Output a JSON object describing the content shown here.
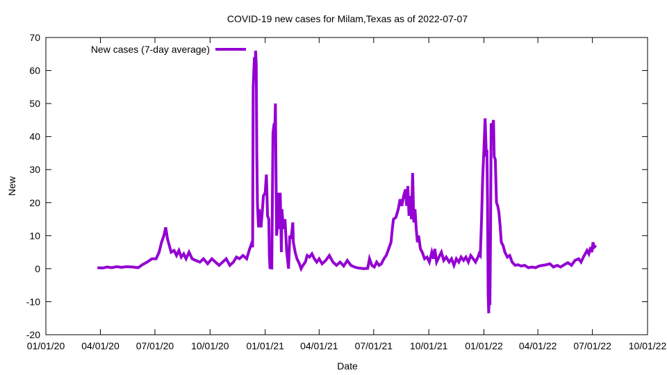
{
  "chart_data": {
    "type": "line",
    "title": "COVID-19 new cases for Milam,Texas as of 2022-07-07",
    "xlabel": "Date",
    "ylabel": "New",
    "ylim": [
      -20,
      70
    ],
    "yticks": [
      "-20",
      "-10",
      "0",
      "10",
      "20",
      "30",
      "40",
      "50",
      "60",
      "70"
    ],
    "xticks": [
      "01/01/20",
      "04/01/20",
      "07/01/20",
      "10/01/20",
      "01/01/21",
      "04/01/21",
      "07/01/21",
      "10/01/21",
      "01/01/22",
      "04/01/22",
      "07/01/22",
      "10/01/22"
    ],
    "xlim": [
      "2020-01-01",
      "2022-10-01"
    ],
    "legend_position": "top-left",
    "grid": false,
    "series": [
      {
        "name": "New cases (7-day average)",
        "color": "#9400d3",
        "points": [
          [
            "2020-03-27",
            0.3
          ],
          [
            "2020-04-05",
            0.2
          ],
          [
            "2020-04-12",
            0.5
          ],
          [
            "2020-04-20",
            0.3
          ],
          [
            "2020-04-28",
            0.6
          ],
          [
            "2020-05-06",
            0.4
          ],
          [
            "2020-05-15",
            0.6
          ],
          [
            "2020-05-25",
            0.5
          ],
          [
            "2020-06-03",
            0.3
          ],
          [
            "2020-06-10",
            1.2
          ],
          [
            "2020-06-18",
            2.0
          ],
          [
            "2020-06-26",
            3.0
          ],
          [
            "2020-07-03",
            3.0
          ],
          [
            "2020-07-08",
            5.0
          ],
          [
            "2020-07-12",
            8.0
          ],
          [
            "2020-07-16",
            10.0
          ],
          [
            "2020-07-19",
            12.5
          ],
          [
            "2020-07-22",
            9.0
          ],
          [
            "2020-07-25",
            7.0
          ],
          [
            "2020-07-28",
            5.0
          ],
          [
            "2020-08-02",
            5.5
          ],
          [
            "2020-08-06",
            4.0
          ],
          [
            "2020-08-10",
            5.5
          ],
          [
            "2020-08-14",
            3.5
          ],
          [
            "2020-08-18",
            4.5
          ],
          [
            "2020-08-22",
            3.0
          ],
          [
            "2020-08-27",
            5.0
          ],
          [
            "2020-09-01",
            3.0
          ],
          [
            "2020-09-07",
            2.5
          ],
          [
            "2020-09-14",
            2.0
          ],
          [
            "2020-09-20",
            3.0
          ],
          [
            "2020-09-27",
            1.5
          ],
          [
            "2020-10-04",
            3.0
          ],
          [
            "2020-10-10",
            2.0
          ],
          [
            "2020-10-16",
            1.0
          ],
          [
            "2020-10-22",
            2.0
          ],
          [
            "2020-10-28",
            3.0
          ],
          [
            "2020-11-03",
            1.0
          ],
          [
            "2020-11-09",
            2.0
          ],
          [
            "2020-11-14",
            3.5
          ],
          [
            "2020-11-19",
            3.0
          ],
          [
            "2020-11-25",
            4.0
          ],
          [
            "2020-12-01",
            3.0
          ],
          [
            "2020-12-06",
            6.0
          ],
          [
            "2020-12-09",
            7.5
          ],
          [
            "2020-12-11",
            6.5
          ],
          [
            "2020-12-12",
            55.0
          ],
          [
            "2020-12-14",
            64.0
          ],
          [
            "2020-12-15",
            60.0
          ],
          [
            "2020-12-16",
            66.0
          ],
          [
            "2020-12-17",
            62.0
          ],
          [
            "2020-12-18",
            35.0
          ],
          [
            "2020-12-19",
            20.0
          ],
          [
            "2020-12-20",
            16.0
          ],
          [
            "2020-12-21",
            12.5
          ],
          [
            "2020-12-22",
            18.0
          ],
          [
            "2020-12-24",
            14.0
          ],
          [
            "2020-12-25",
            12.5
          ],
          [
            "2020-12-27",
            17.0
          ],
          [
            "2020-12-29",
            22.0
          ],
          [
            "2021-01-01",
            23.0
          ],
          [
            "2021-01-03",
            28.5
          ],
          [
            "2021-01-05",
            16.0
          ],
          [
            "2021-01-07",
            15.0
          ],
          [
            "2021-01-08",
            4.0
          ],
          [
            "2021-01-09",
            0.3
          ],
          [
            "2021-01-12",
            0.2
          ],
          [
            "2021-01-14",
            41.0
          ],
          [
            "2021-01-16",
            44.0
          ],
          [
            "2021-01-17",
            42.0
          ],
          [
            "2021-01-18",
            50.0
          ],
          [
            "2021-01-19",
            30.0
          ],
          [
            "2021-01-20",
            10.0
          ],
          [
            "2021-01-21",
            12.0
          ],
          [
            "2021-01-22",
            21.0
          ],
          [
            "2021-01-23",
            15.0
          ],
          [
            "2021-01-24",
            23.0
          ],
          [
            "2021-01-25",
            12.0
          ],
          [
            "2021-01-26",
            23.0
          ],
          [
            "2021-01-27",
            15.0
          ],
          [
            "2021-01-28",
            5.0
          ],
          [
            "2021-01-29",
            18.0
          ],
          [
            "2021-01-31",
            12.0
          ],
          [
            "2021-02-03",
            15.0
          ],
          [
            "2021-02-06",
            5.0
          ],
          [
            "2021-02-09",
            0.0
          ],
          [
            "2021-02-11",
            10.0
          ],
          [
            "2021-02-13",
            9.0
          ],
          [
            "2021-02-15",
            12.0
          ],
          [
            "2021-02-16",
            14.0
          ],
          [
            "2021-02-17",
            8.0
          ],
          [
            "2021-02-20",
            5.0
          ],
          [
            "2021-02-23",
            3.0
          ],
          [
            "2021-02-27",
            1.5
          ],
          [
            "2021-03-02",
            0.0
          ],
          [
            "2021-03-05",
            1.0
          ],
          [
            "2021-03-09",
            2.0
          ],
          [
            "2021-03-12",
            4.0
          ],
          [
            "2021-03-16",
            3.5
          ],
          [
            "2021-03-20",
            4.5
          ],
          [
            "2021-03-24",
            3.0
          ],
          [
            "2021-03-28",
            2.0
          ],
          [
            "2021-04-01",
            3.0
          ],
          [
            "2021-04-06",
            1.5
          ],
          [
            "2021-04-12",
            2.5
          ],
          [
            "2021-04-18",
            4.0
          ],
          [
            "2021-04-24",
            2.0
          ],
          [
            "2021-04-30",
            1.0
          ],
          [
            "2021-05-06",
            2.0
          ],
          [
            "2021-05-12",
            0.8
          ],
          [
            "2021-05-18",
            2.5
          ],
          [
            "2021-05-24",
            1.0
          ],
          [
            "2021-05-30",
            0.5
          ],
          [
            "2021-06-05",
            0.2
          ],
          [
            "2021-06-15",
            0.0
          ],
          [
            "2021-06-21",
            0.1
          ],
          [
            "2021-06-24",
            3.0
          ],
          [
            "2021-06-28",
            1.0
          ],
          [
            "2021-07-02",
            0.5
          ],
          [
            "2021-07-06",
            2.0
          ],
          [
            "2021-07-10",
            1.0
          ],
          [
            "2021-07-14",
            1.5
          ],
          [
            "2021-07-18",
            3.0
          ],
          [
            "2021-07-22",
            4.0
          ],
          [
            "2021-07-26",
            6.0
          ],
          [
            "2021-07-30",
            8.0
          ],
          [
            "2021-08-01",
            12.0
          ],
          [
            "2021-08-03",
            15.0
          ],
          [
            "2021-08-07",
            15.5
          ],
          [
            "2021-08-11",
            18.0
          ],
          [
            "2021-08-14",
            21.0
          ],
          [
            "2021-08-17",
            19.0
          ],
          [
            "2021-08-20",
            22.0
          ],
          [
            "2021-08-23",
            24.0
          ],
          [
            "2021-08-25",
            19.0
          ],
          [
            "2021-08-27",
            25.0
          ],
          [
            "2021-08-29",
            16.0
          ],
          [
            "2021-08-31",
            22.0
          ],
          [
            "2021-09-02",
            15.0
          ],
          [
            "2021-09-04",
            29.0
          ],
          [
            "2021-09-06",
            14.0
          ],
          [
            "2021-09-08",
            18.0
          ],
          [
            "2021-09-10",
            12.0
          ],
          [
            "2021-09-12",
            8.0
          ],
          [
            "2021-09-14",
            10.0
          ],
          [
            "2021-09-17",
            6.0
          ],
          [
            "2021-09-20",
            5.0
          ],
          [
            "2021-09-24",
            3.0
          ],
          [
            "2021-09-28",
            3.5
          ],
          [
            "2021-10-02",
            2.0
          ],
          [
            "2021-10-06",
            5.0
          ],
          [
            "2021-10-09",
            3.0
          ],
          [
            "2021-10-11",
            6.0
          ],
          [
            "2021-10-14",
            2.0
          ],
          [
            "2021-10-18",
            3.5
          ],
          [
            "2021-10-22",
            5.0
          ],
          [
            "2021-10-26",
            2.5
          ],
          [
            "2021-10-30",
            3.5
          ],
          [
            "2021-11-04",
            2.0
          ],
          [
            "2021-11-08",
            3.0
          ],
          [
            "2021-11-12",
            1.0
          ],
          [
            "2021-11-16",
            3.0
          ],
          [
            "2021-11-20",
            2.0
          ],
          [
            "2021-11-24",
            3.5
          ],
          [
            "2021-11-28",
            2.5
          ],
          [
            "2021-12-02",
            3.5
          ],
          [
            "2021-12-06",
            2.0
          ],
          [
            "2021-12-10",
            4.0
          ],
          [
            "2021-12-14",
            3.0
          ],
          [
            "2021-12-18",
            2.0
          ],
          [
            "2021-12-22",
            3.5
          ],
          [
            "2021-12-24",
            4.5
          ],
          [
            "2021-12-26",
            4.0
          ],
          [
            "2021-12-28",
            15.0
          ],
          [
            "2021-12-30",
            28.0
          ],
          [
            "2022-01-01",
            36.0
          ],
          [
            "2022-01-03",
            45.5
          ],
          [
            "2022-01-05",
            34.0
          ],
          [
            "2022-01-06",
            36.0
          ],
          [
            "2022-01-07",
            20.0
          ],
          [
            "2022-01-08",
            -8.0
          ],
          [
            "2022-01-09",
            -13.5
          ],
          [
            "2022-01-10",
            -6.0
          ],
          [
            "2022-01-11",
            -11.0
          ],
          [
            "2022-01-12",
            10.0
          ],
          [
            "2022-01-13",
            44.0
          ],
          [
            "2022-01-15",
            43.0
          ],
          [
            "2022-01-17",
            45.0
          ],
          [
            "2022-01-18",
            34.0
          ],
          [
            "2022-01-20",
            33.0
          ],
          [
            "2022-01-22",
            20.0
          ],
          [
            "2022-01-24",
            19.0
          ],
          [
            "2022-01-26",
            17.0
          ],
          [
            "2022-01-28",
            13.0
          ],
          [
            "2022-01-30",
            8.0
          ],
          [
            "2022-02-02",
            7.0
          ],
          [
            "2022-02-05",
            5.0
          ],
          [
            "2022-02-09",
            3.5
          ],
          [
            "2022-02-13",
            4.0
          ],
          [
            "2022-02-17",
            2.0
          ],
          [
            "2022-02-22",
            1.0
          ],
          [
            "2022-02-27",
            1.2
          ],
          [
            "2022-03-04",
            0.8
          ],
          [
            "2022-03-10",
            1.0
          ],
          [
            "2022-03-16",
            0.3
          ],
          [
            "2022-03-22",
            0.5
          ],
          [
            "2022-03-28",
            0.3
          ],
          [
            "2022-04-03",
            0.8
          ],
          [
            "2022-04-09",
            1.0
          ],
          [
            "2022-04-15",
            1.2
          ],
          [
            "2022-04-21",
            1.5
          ],
          [
            "2022-04-27",
            0.5
          ],
          [
            "2022-05-03",
            1.0
          ],
          [
            "2022-05-09",
            0.5
          ],
          [
            "2022-05-15",
            1.2
          ],
          [
            "2022-05-21",
            1.8
          ],
          [
            "2022-05-27",
            1.0
          ],
          [
            "2022-06-02",
            2.5
          ],
          [
            "2022-06-08",
            3.0
          ],
          [
            "2022-06-12",
            2.0
          ],
          [
            "2022-06-16",
            3.5
          ],
          [
            "2022-06-19",
            4.5
          ],
          [
            "2022-06-22",
            5.5
          ],
          [
            "2022-06-25",
            4.5
          ],
          [
            "2022-06-28",
            6.5
          ],
          [
            "2022-06-30",
            5.0
          ],
          [
            "2022-07-02",
            8.0
          ],
          [
            "2022-07-04",
            6.5
          ],
          [
            "2022-07-07",
            7.0
          ]
        ]
      }
    ]
  }
}
